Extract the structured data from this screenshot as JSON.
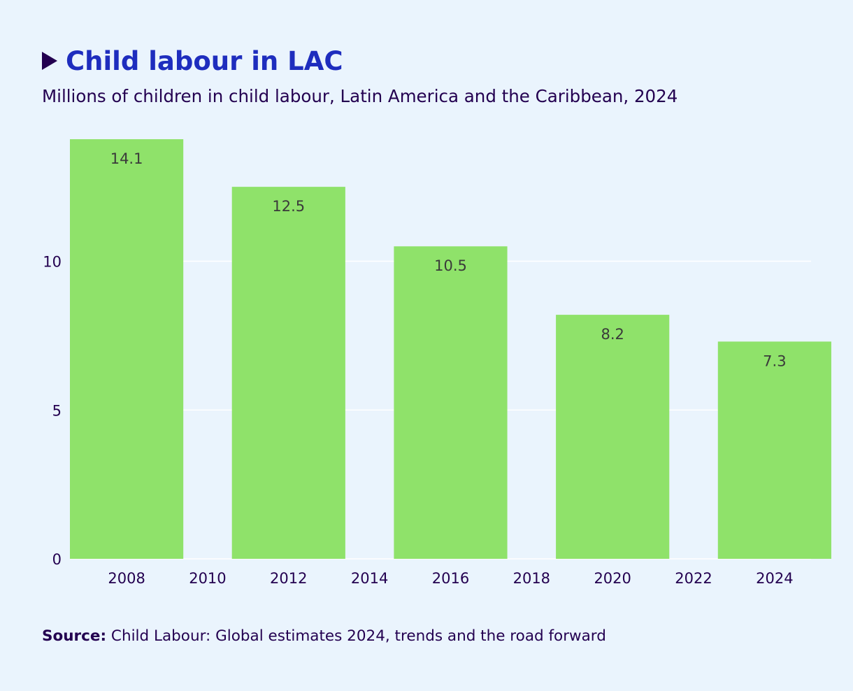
{
  "title": "Child labour in LAC",
  "subtitle": "Millions of children in child labour, Latin America and the Caribbean, 2024",
  "source": {
    "label": "Source:",
    "text": " Child Labour: Global estimates 2024, trends and the road forward"
  },
  "colors": {
    "background": "#eaf4fd",
    "bar": "#8fe26a",
    "title": "#1e2dbe",
    "text": "#230050",
    "grid": "#ffffff"
  },
  "chart_data": {
    "type": "bar",
    "categories": [
      "2008",
      "2012",
      "2016",
      "2020",
      "2024"
    ],
    "values": [
      14.1,
      12.5,
      10.5,
      8.2,
      7.3
    ],
    "data_labels": [
      "14.1",
      "12.5",
      "10.5",
      "8.2",
      "7.3"
    ],
    "x_ticks": [
      "2008",
      "2010",
      "2012",
      "2014",
      "2016",
      "2018",
      "2020",
      "2022",
      "2024"
    ],
    "y_ticks": [
      "0",
      "5",
      "10"
    ],
    "ylim": [
      0,
      14.1
    ],
    "xlim": [
      2006.6,
      2024.9
    ],
    "bar_width_years": 2.8,
    "grid": true,
    "legend": "none"
  }
}
